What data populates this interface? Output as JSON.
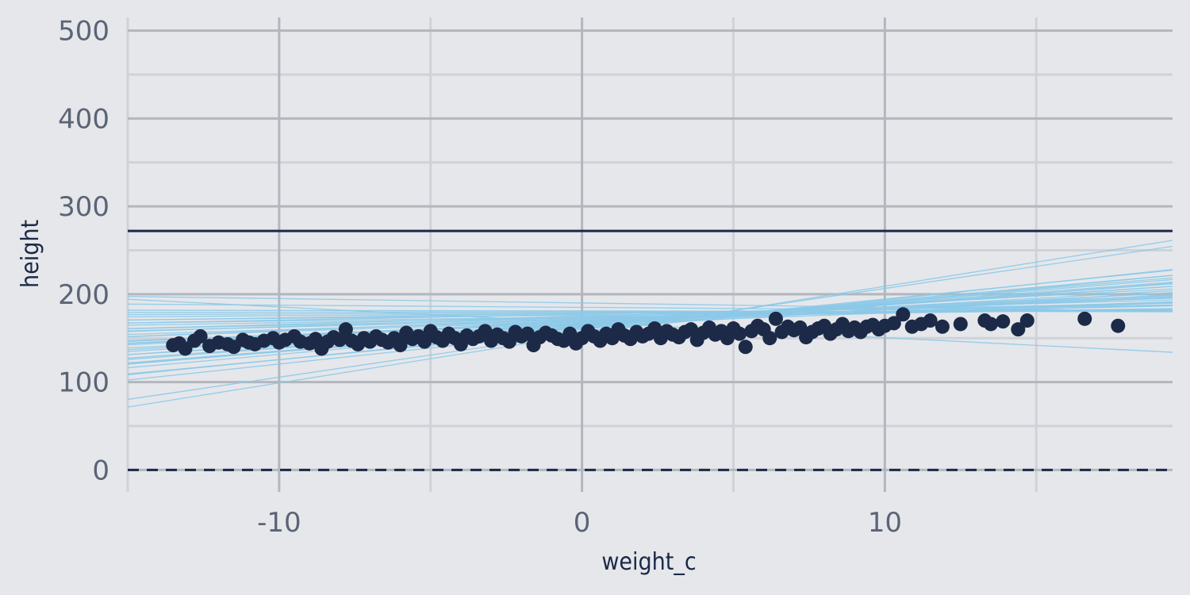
{
  "chart_data": {
    "type": "scatter",
    "title": "",
    "xlabel": "weight_c",
    "ylabel": "height",
    "xlim": [
      -15,
      19.5
    ],
    "ylim": [
      -25,
      515
    ],
    "x_ticks": [
      -10,
      0,
      10
    ],
    "x_tick_labels": [
      "-10",
      "0",
      "10"
    ],
    "y_ticks": [
      0,
      100,
      200,
      300,
      400,
      500
    ],
    "y_tick_labels": [
      "0",
      "100",
      "200",
      "300",
      "400",
      "500"
    ],
    "grid": true,
    "legend": "none",
    "colors": {
      "background": "#e5e7eb",
      "grid_major": "#b3b6bd",
      "grid_minor": "#cfd2d8",
      "points": "#1c2a48",
      "prior_lines": "#8cc9e8",
      "reference_lines": "#1c2a48"
    },
    "reference_lines": [
      {
        "y": 272,
        "style": "solid"
      },
      {
        "y": 0,
        "style": "dashed"
      }
    ],
    "prior_lines": [
      {
        "intercept": 168,
        "slope": -1.75
      },
      {
        "intercept": 154,
        "slope": 5.5
      },
      {
        "intercept": 156,
        "slope": 5.05
      },
      {
        "intercept": 157,
        "slope": 3.65
      },
      {
        "intercept": 160,
        "slope": 3.45
      },
      {
        "intercept": 162,
        "slope": 3.05
      },
      {
        "intercept": 163,
        "slope": 2.85
      },
      {
        "intercept": 161,
        "slope": 2.65
      },
      {
        "intercept": 164,
        "slope": 2.45
      },
      {
        "intercept": 165,
        "slope": 2.25
      },
      {
        "intercept": 162,
        "slope": 2.05
      },
      {
        "intercept": 166,
        "slope": 1.95
      },
      {
        "intercept": 165,
        "slope": 1.75
      },
      {
        "intercept": 167,
        "slope": 1.55
      },
      {
        "intercept": 168,
        "slope": 1.45
      },
      {
        "intercept": 166,
        "slope": 1.25
      },
      {
        "intercept": 169,
        "slope": 1.15
      },
      {
        "intercept": 170,
        "slope": 1.05
      },
      {
        "intercept": 171,
        "slope": 0.85
      },
      {
        "intercept": 172,
        "slope": 0.75
      },
      {
        "intercept": 173,
        "slope": 0.55
      },
      {
        "intercept": 174,
        "slope": 0.45
      },
      {
        "intercept": 176,
        "slope": 0.35
      },
      {
        "intercept": 178,
        "slope": 0.25
      },
      {
        "intercept": 179,
        "slope": 0.15
      },
      {
        "intercept": 180,
        "slope": 0.05
      },
      {
        "intercept": 181,
        "slope": -0.05
      },
      {
        "intercept": 172,
        "slope": 1.35
      },
      {
        "intercept": 169,
        "slope": 1.65
      },
      {
        "intercept": 167,
        "slope": 2.15
      },
      {
        "intercept": 164,
        "slope": 2.55
      },
      {
        "intercept": 175,
        "slope": 0.95
      },
      {
        "intercept": 177,
        "slope": 0.65
      },
      {
        "intercept": 178,
        "slope": 0.5
      },
      {
        "intercept": 190,
        "slope": -0.5
      },
      {
        "intercept": 185,
        "slope": -0.25
      },
      {
        "intercept": 170,
        "slope": 1.85
      },
      {
        "intercept": 163,
        "slope": 2.75
      },
      {
        "intercept": 158,
        "slope": 3.25
      },
      {
        "intercept": 174,
        "slope": 1.1
      }
    ],
    "points": [
      [
        -13.5,
        142
      ],
      [
        -13.3,
        144
      ],
      [
        -13.1,
        138
      ],
      [
        -12.8,
        147
      ],
      [
        -12.6,
        152
      ],
      [
        -12.3,
        141
      ],
      [
        -12.0,
        145
      ],
      [
        -11.7,
        143
      ],
      [
        -11.5,
        140
      ],
      [
        -11.2,
        148
      ],
      [
        -11.0,
        145
      ],
      [
        -10.8,
        143
      ],
      [
        -10.5,
        147
      ],
      [
        -10.2,
        150
      ],
      [
        -10.0,
        145
      ],
      [
        -9.8,
        148
      ],
      [
        -9.5,
        152
      ],
      [
        -9.3,
        146
      ],
      [
        -9.0,
        144
      ],
      [
        -8.8,
        149
      ],
      [
        -8.6,
        138
      ],
      [
        -8.4,
        146
      ],
      [
        -8.2,
        151
      ],
      [
        -8.0,
        148
      ],
      [
        -7.8,
        160
      ],
      [
        -7.6,
        147
      ],
      [
        -7.4,
        143
      ],
      [
        -7.2,
        150
      ],
      [
        -7.0,
        146
      ],
      [
        -6.8,
        152
      ],
      [
        -6.6,
        148
      ],
      [
        -6.4,
        145
      ],
      [
        -6.2,
        150
      ],
      [
        -6.0,
        142
      ],
      [
        -5.8,
        156
      ],
      [
        -5.6,
        149
      ],
      [
        -5.4,
        152
      ],
      [
        -5.2,
        146
      ],
      [
        -5.0,
        158
      ],
      [
        -4.8,
        151
      ],
      [
        -4.6,
        147
      ],
      [
        -4.4,
        155
      ],
      [
        -4.2,
        150
      ],
      [
        -4.0,
        143
      ],
      [
        -3.8,
        153
      ],
      [
        -3.6,
        149
      ],
      [
        -3.4,
        152
      ],
      [
        -3.2,
        158
      ],
      [
        -3.0,
        147
      ],
      [
        -2.8,
        154
      ],
      [
        -2.6,
        150
      ],
      [
        -2.4,
        146
      ],
      [
        -2.2,
        157
      ],
      [
        -2.0,
        152
      ],
      [
        -1.8,
        155
      ],
      [
        -1.6,
        142
      ],
      [
        -1.4,
        151
      ],
      [
        -1.2,
        156
      ],
      [
        -1.0,
        153
      ],
      [
        -0.8,
        149
      ],
      [
        -0.6,
        147
      ],
      [
        -0.4,
        155
      ],
      [
        -0.2,
        144
      ],
      [
        0.0,
        150
      ],
      [
        0.2,
        158
      ],
      [
        0.4,
        152
      ],
      [
        0.6,
        147
      ],
      [
        0.8,
        155
      ],
      [
        1.0,
        150
      ],
      [
        1.2,
        160
      ],
      [
        1.4,
        153
      ],
      [
        1.6,
        149
      ],
      [
        1.8,
        157
      ],
      [
        2.0,
        152
      ],
      [
        2.2,
        155
      ],
      [
        2.4,
        161
      ],
      [
        2.6,
        150
      ],
      [
        2.8,
        158
      ],
      [
        3.0,
        154
      ],
      [
        3.2,
        151
      ],
      [
        3.4,
        157
      ],
      [
        3.6,
        160
      ],
      [
        3.8,
        148
      ],
      [
        4.0,
        156
      ],
      [
        4.2,
        162
      ],
      [
        4.4,
        154
      ],
      [
        4.6,
        158
      ],
      [
        4.8,
        150
      ],
      [
        5.0,
        161
      ],
      [
        5.2,
        155
      ],
      [
        5.4,
        140
      ],
      [
        5.6,
        158
      ],
      [
        5.8,
        164
      ],
      [
        6.0,
        160
      ],
      [
        6.2,
        150
      ],
      [
        6.4,
        172
      ],
      [
        6.6,
        157
      ],
      [
        6.8,
        163
      ],
      [
        7.0,
        159
      ],
      [
        7.2,
        162
      ],
      [
        7.4,
        151
      ],
      [
        7.6,
        157
      ],
      [
        7.8,
        161
      ],
      [
        8.0,
        164
      ],
      [
        8.2,
        155
      ],
      [
        8.4,
        160
      ],
      [
        8.6,
        166
      ],
      [
        8.8,
        158
      ],
      [
        9.0,
        162
      ],
      [
        9.2,
        157
      ],
      [
        9.4,
        163
      ],
      [
        9.6,
        165
      ],
      [
        9.8,
        160
      ],
      [
        10.0,
        164
      ],
      [
        10.3,
        167
      ],
      [
        10.6,
        177
      ],
      [
        10.9,
        163
      ],
      [
        11.2,
        166
      ],
      [
        11.5,
        170
      ],
      [
        11.9,
        163
      ],
      [
        12.5,
        166
      ],
      [
        13.3,
        170
      ],
      [
        13.5,
        166
      ],
      [
        13.9,
        169
      ],
      [
        14.4,
        160
      ],
      [
        14.7,
        170
      ],
      [
        16.6,
        172
      ],
      [
        17.7,
        164
      ]
    ]
  }
}
